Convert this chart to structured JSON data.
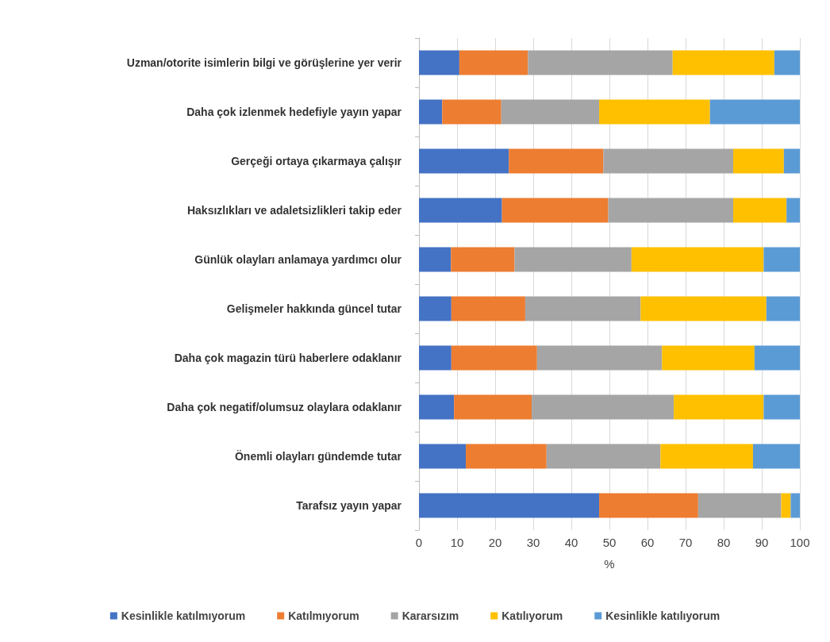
{
  "chart_data": {
    "type": "bar",
    "orientation": "horizontal",
    "stacked": true,
    "categories": [
      "Uzman/otorite isimlerin bilgi ve görüşlerine yer verir",
      "Daha çok izlenmek hedefiyle yayın yapar",
      "Gerçeği ortaya çıkarmaya çalışır",
      "Haksızlıkları ve adaletsizlikleri takip eder",
      "Günlük olayları anlamaya yardımcı olur",
      "Gelişmeler hakkında güncel tutar",
      "Daha çok magazin türü haberlere odaklanır",
      "Daha çok negatif/olumsuz olaylara odaklanır",
      "Önemli olayları gündemde tutar",
      "Tarafsız yayın yapar"
    ],
    "series": [
      {
        "name": "Kesinlikle katılmıyorum",
        "color": "#4472c4",
        "values": [
          10.6,
          6.1,
          23.6,
          21.8,
          8.4,
          8.5,
          8.5,
          9.2,
          12.3,
          47.3
        ]
      },
      {
        "name": "Katılmıyorum",
        "color": "#ed7d31",
        "values": [
          18.0,
          15.5,
          24.8,
          27.9,
          16.7,
          19.4,
          22.5,
          20.4,
          21.2,
          26.0
        ]
      },
      {
        "name": "Kararsızım",
        "color": "#a5a5a5",
        "values": [
          38.0,
          25.7,
          34.1,
          32.8,
          30.7,
          30.3,
          32.8,
          37.3,
          29.9,
          21.8
        ]
      },
      {
        "name": "Katılıyorum",
        "color": "#ffc000",
        "values": [
          26.7,
          29.1,
          13.3,
          14.0,
          34.7,
          33.0,
          24.3,
          23.6,
          24.3,
          2.5
        ]
      },
      {
        "name": "Kesinlikle katılıyorum",
        "color": "#5b9bd5",
        "values": [
          6.7,
          23.6,
          4.2,
          3.5,
          9.5,
          8.8,
          11.9,
          9.5,
          12.3,
          2.4
        ]
      }
    ],
    "xlabel": "%",
    "xlim": [
      0,
      100
    ],
    "xticks": [
      0,
      10,
      20,
      30,
      40,
      50,
      60,
      70,
      80,
      90,
      100
    ],
    "grid": "x",
    "legend": "bottom"
  }
}
